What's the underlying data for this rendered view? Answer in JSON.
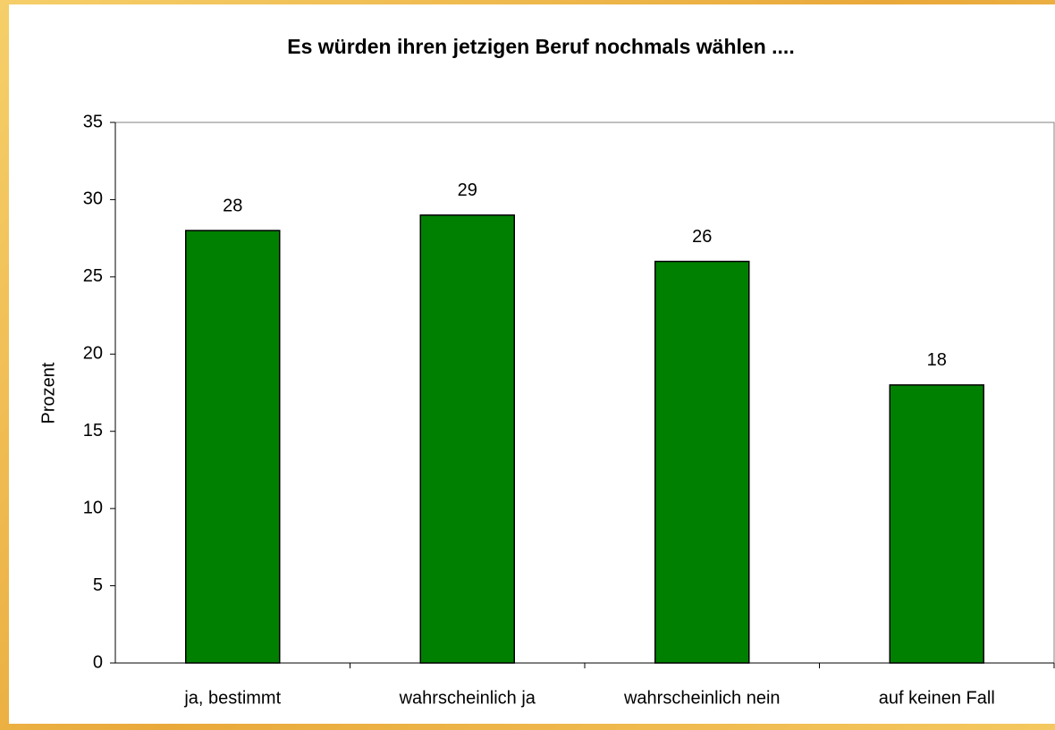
{
  "chart_data": {
    "type": "bar",
    "title": "Es würden ihren jetzigen Beruf nochmals wählen ....",
    "y_label": "Prozent",
    "categories": [
      "ja, bestimmt",
      "wahrscheinlich ja",
      "wahrscheinlich nein",
      "auf keinen Fall"
    ],
    "values": [
      28,
      29,
      26,
      18
    ],
    "color": "#008000",
    "ylim": [
      0,
      35
    ],
    "yticks": [
      0,
      5,
      10,
      15,
      20,
      25,
      30,
      35
    ],
    "grid": false
  }
}
